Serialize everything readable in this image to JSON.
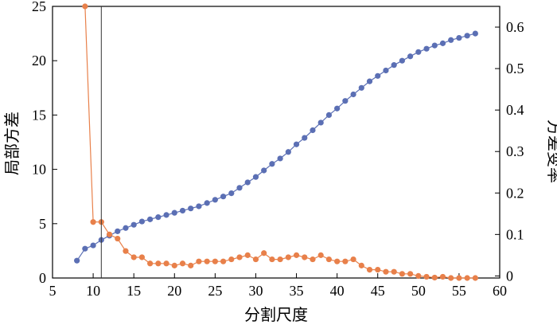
{
  "chart_data": {
    "type": "line",
    "xlabel": "分割尺度",
    "ylabel_left": "局部方差",
    "ylabel_right": "方差变率",
    "xlim": [
      5,
      60
    ],
    "ylim_left": [
      0,
      25
    ],
    "ylim_right": [
      -0.005,
      0.65
    ],
    "xticks": [
      5,
      10,
      15,
      20,
      25,
      30,
      35,
      40,
      45,
      50,
      55,
      60
    ],
    "yticks_left": [
      0,
      5,
      10,
      15,
      20,
      25
    ],
    "yticks_right": [
      0,
      0.1,
      0.2,
      0.3,
      0.4,
      0.5,
      0.6
    ],
    "xtick_labels": [
      "5",
      "10",
      "15",
      "20",
      "25",
      "30",
      "35",
      "40",
      "45",
      "50",
      "55",
      "60"
    ],
    "ytick_labels_left": [
      "0",
      "5",
      "10",
      "15",
      "20",
      "25"
    ],
    "ytick_labels_right": [
      "0",
      "0.1",
      "0.2",
      "0.3",
      "0.4",
      "0.5",
      "0.6"
    ],
    "vertical_line_x": 11,
    "grid": false,
    "series": [
      {
        "axis": "left",
        "color": "#5b6fb4",
        "x": [
          8,
          9,
          10,
          11,
          12,
          13,
          14,
          15,
          16,
          17,
          18,
          19,
          20,
          21,
          22,
          23,
          24,
          25,
          26,
          27,
          28,
          29,
          30,
          31,
          32,
          33,
          34,
          35,
          36,
          37,
          38,
          39,
          40,
          41,
          42,
          43,
          44,
          45,
          46,
          47,
          48,
          49,
          50,
          51,
          52,
          53,
          54,
          55,
          56,
          57
        ],
        "values": [
          1.6,
          2.7,
          3.0,
          3.5,
          3.9,
          4.3,
          4.6,
          4.9,
          5.2,
          5.4,
          5.6,
          5.8,
          6.0,
          6.2,
          6.4,
          6.6,
          6.9,
          7.2,
          7.5,
          7.8,
          8.3,
          8.8,
          9.3,
          9.9,
          10.5,
          11.0,
          11.6,
          12.3,
          12.9,
          13.6,
          14.3,
          15.0,
          15.6,
          16.3,
          16.9,
          17.5,
          18.1,
          18.6,
          19.1,
          19.6,
          20.0,
          20.4,
          20.8,
          21.1,
          21.4,
          21.6,
          21.9,
          22.1,
          22.3,
          22.5
        ]
      },
      {
        "axis": "right",
        "color": "#e8804a",
        "x": [
          9,
          10,
          11,
          12,
          13,
          14,
          15,
          16,
          17,
          18,
          19,
          20,
          21,
          22,
          23,
          24,
          25,
          26,
          27,
          28,
          29,
          30,
          31,
          32,
          33,
          34,
          35,
          36,
          37,
          38,
          39,
          40,
          41,
          42,
          43,
          44,
          45,
          46,
          47,
          48,
          49,
          50,
          51,
          52,
          53,
          54,
          55,
          56,
          57
        ],
        "values": [
          0.65,
          0.13,
          0.13,
          0.1,
          0.09,
          0.06,
          0.045,
          0.045,
          0.03,
          0.03,
          0.03,
          0.025,
          0.03,
          0.025,
          0.035,
          0.035,
          0.035,
          0.035,
          0.04,
          0.045,
          0.05,
          0.04,
          0.055,
          0.04,
          0.04,
          0.045,
          0.05,
          0.045,
          0.04,
          0.05,
          0.04,
          0.035,
          0.035,
          0.04,
          0.025,
          0.015,
          0.015,
          0.01,
          0.01,
          0.005,
          0.005,
          0.0,
          -0.002,
          -0.004,
          -0.002,
          -0.005,
          -0.005,
          -0.005,
          -0.005
        ]
      }
    ]
  }
}
